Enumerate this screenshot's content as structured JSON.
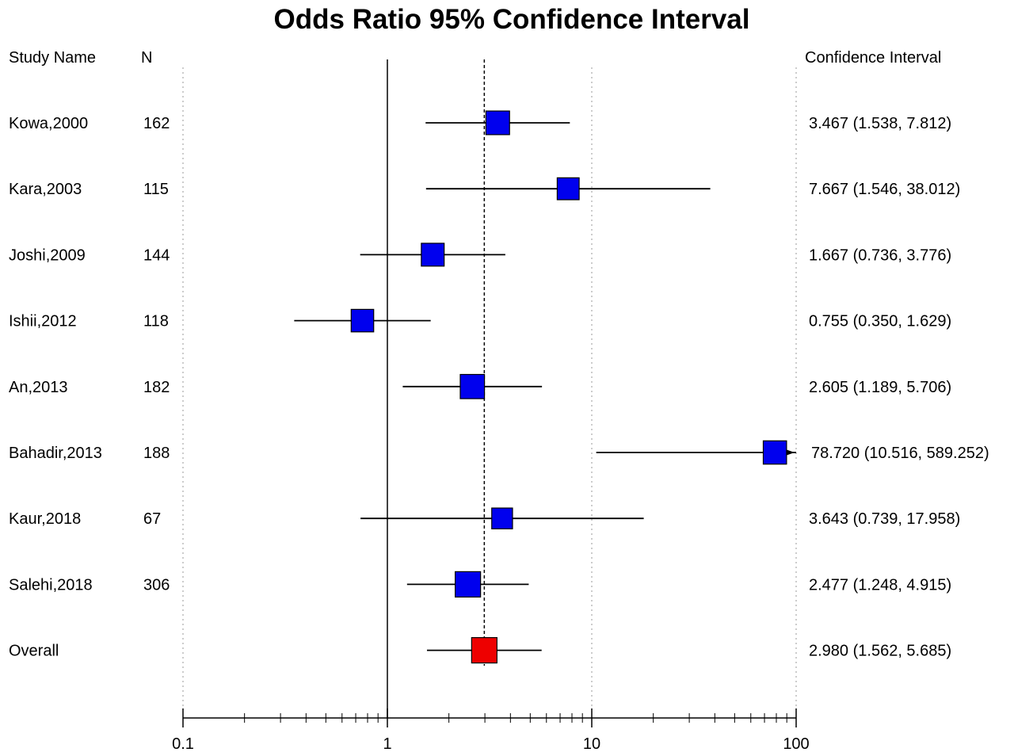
{
  "chart_data": {
    "type": "forest",
    "title": "Odds Ratio 95% Confidence Interval",
    "columns": {
      "study": "Study Name",
      "n": "N",
      "ci": "Confidence Interval"
    },
    "x_scale": "log",
    "xlim": [
      0.1,
      100
    ],
    "x_ticks": [
      "0.1",
      "1",
      "10",
      "100"
    ],
    "reference_line": 1,
    "pooled_line": 2.98,
    "grid": "dotted vertical lines at 0.1, 10 and 100",
    "studies": [
      {
        "name": "Kowa,2000",
        "n": "162",
        "or": 3.467,
        "lo": 1.538,
        "hi": 7.812,
        "ci_text": "3.467 (1.538, 7.812)",
        "weight": 0.85
      },
      {
        "name": "Kara,2003",
        "n": "115",
        "or": 7.667,
        "lo": 1.546,
        "hi": 38.012,
        "ci_text": "7.667 (1.546, 38.012)",
        "weight": 0.7
      },
      {
        "name": "Joshi,2009",
        "n": "144",
        "or": 1.667,
        "lo": 0.736,
        "hi": 3.776,
        "ci_text": "1.667 (0.736, 3.776)",
        "weight": 0.78
      },
      {
        "name": "Ishii,2012",
        "n": "118",
        "or": 0.755,
        "lo": 0.35,
        "hi": 1.629,
        "ci_text": "0.755 (0.350, 1.629)",
        "weight": 0.75
      },
      {
        "name": "An,2013",
        "n": "182",
        "or": 2.605,
        "lo": 1.189,
        "hi": 5.706,
        "ci_text": "2.605 (1.189, 5.706)",
        "weight": 0.9
      },
      {
        "name": "Bahadir,2013",
        "n": "188",
        "or": 78.72,
        "lo": 10.516,
        "hi": 589.252,
        "ci_text": "78.720 (10.516, 589.252)",
        "weight": 0.82,
        "arrow": true
      },
      {
        "name": "Kaur,2018",
        "n": "67",
        "or": 3.643,
        "lo": 0.739,
        "hi": 17.958,
        "ci_text": "3.643 (0.739, 17.958)",
        "weight": 0.6
      },
      {
        "name": "Salehi,2018",
        "n": "306",
        "or": 2.477,
        "lo": 1.248,
        "hi": 4.915,
        "ci_text": "2.477 (1.248, 4.915)",
        "weight": 1.0
      }
    ],
    "overall": {
      "name": "Overall",
      "n": "",
      "or": 2.98,
      "lo": 1.562,
      "hi": 5.685,
      "ci_text": "2.980 (1.562, 5.685)"
    },
    "colors": {
      "study_box": "#0000ee",
      "overall_box": "#ee0000",
      "line": "#000000",
      "grid": "#999999"
    }
  }
}
